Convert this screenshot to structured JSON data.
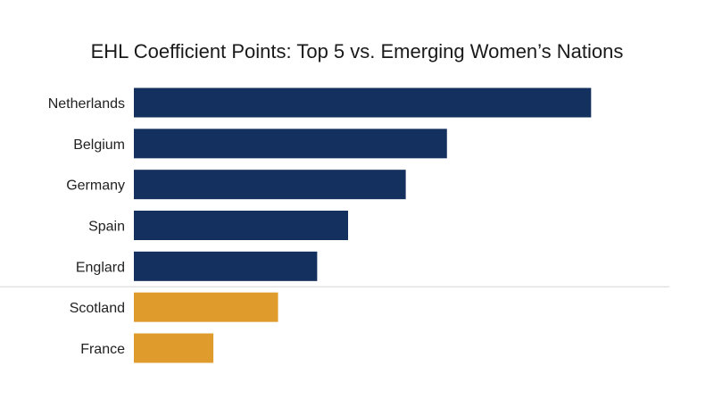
{
  "chart_data": {
    "type": "bar",
    "orientation": "horizontal",
    "title": "EHL Coefficient Points: Top 5 vs. Emerging Women’s Nations",
    "xlabel": "",
    "ylabel": "",
    "categories": [
      "Netherlands",
      "Belgium",
      "Germany",
      "Spain",
      "Englard",
      "Scotland",
      "France"
    ],
    "values": [
      111,
      76,
      66,
      52,
      44.5,
      35,
      19.3
    ],
    "groups": [
      "top",
      "top",
      "top",
      "top",
      "top",
      "emerging",
      "emerging"
    ],
    "xlim": [
      0,
      130
    ],
    "grid": false,
    "legend": "none",
    "colors": {
      "top": "#14305e",
      "emerging": "#df9c2c"
    },
    "divider_after_index": 4
  }
}
